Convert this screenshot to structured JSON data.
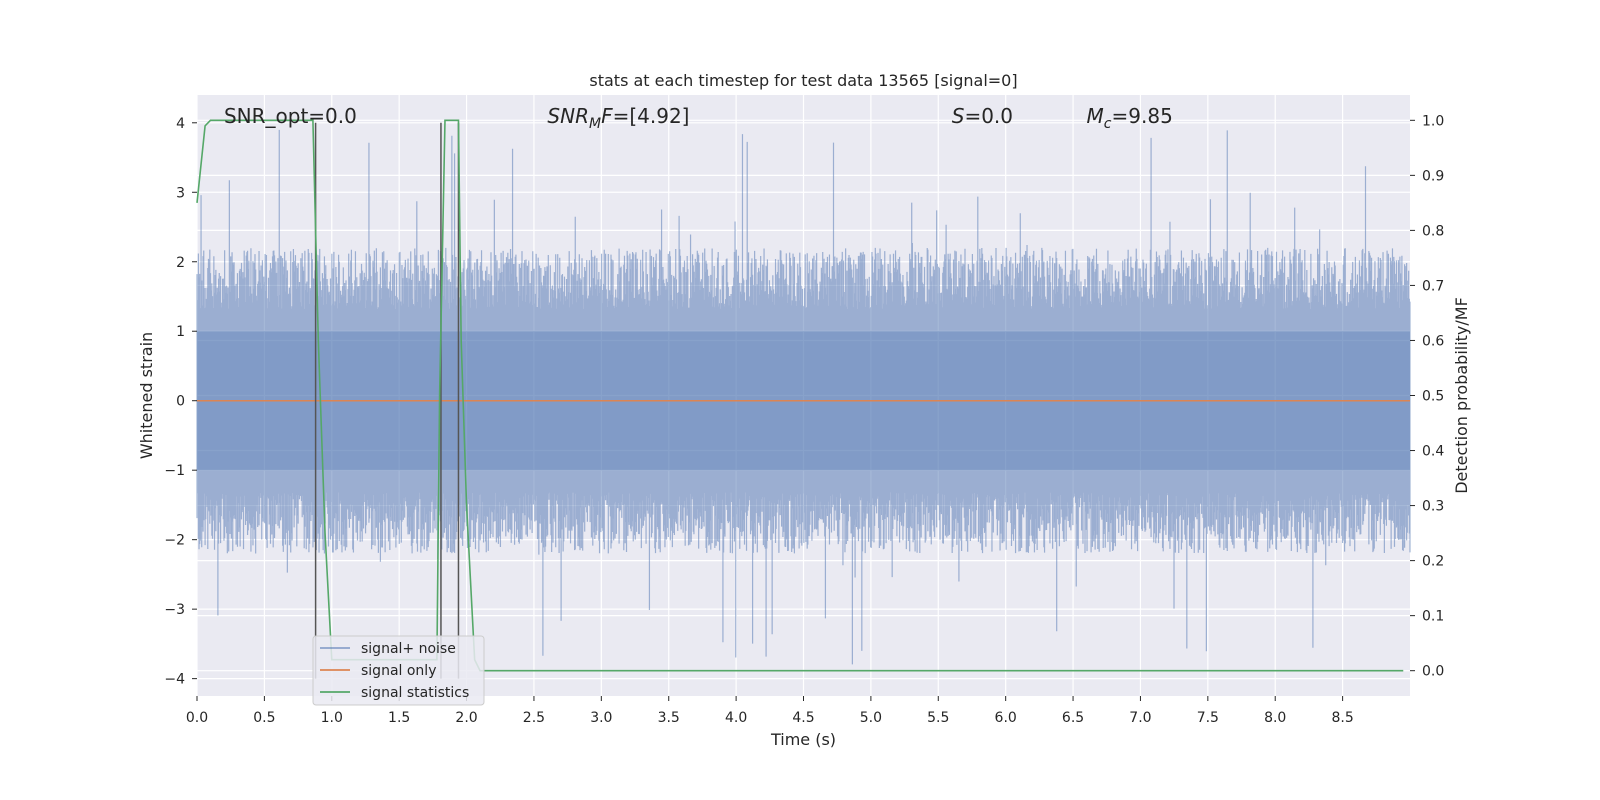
{
  "chart_data": {
    "type": "line",
    "title": "stats at each timestep for test data 13565 [signal=0]",
    "xlabel": "Time (s)",
    "ylabel": "Whitened strain",
    "y2label": "Detection probability/MF",
    "xlim": [
      0,
      9.0
    ],
    "ylim": [
      -4.25,
      4.4
    ],
    "y2lim": [
      -0.046,
      1.046
    ],
    "xticks": [
      0.0,
      0.5,
      1.0,
      1.5,
      2.0,
      2.5,
      3.0,
      3.5,
      4.0,
      4.5,
      5.0,
      5.5,
      6.0,
      6.5,
      7.0,
      7.5,
      8.0,
      8.5
    ],
    "yticks": [
      -4,
      -3,
      -2,
      -1,
      0,
      1,
      2,
      3,
      4
    ],
    "y2ticks": [
      0.0,
      0.1,
      0.2,
      0.3,
      0.4,
      0.5,
      0.6,
      0.7,
      0.8,
      0.9,
      1.0
    ],
    "grid": true,
    "legend_position": "lower-left",
    "annotations": [
      {
        "text": "SNR_opt=0.0",
        "x": 0.2,
        "y": 4.1
      },
      {
        "text": "SNR_MF=[4.92]",
        "x": 2.6,
        "y": 4.1
      },
      {
        "text": "S=0.0",
        "x": 5.6,
        "y": 4.1
      },
      {
        "text": "M_c=9.85",
        "x": 6.6,
        "y": 4.1
      }
    ],
    "vlines": [
      {
        "x": 0.88,
        "y_from": -4.0,
        "y_to": 4.0
      },
      {
        "x": 1.81,
        "y_from": -4.0,
        "y_to": 4.0
      },
      {
        "x": 1.94,
        "y_from": -4.0,
        "y_to": 4.0
      }
    ],
    "noise_envelope": {
      "x_start": 0.0,
      "x_end": 9.0,
      "samples": 1800,
      "typical_max": 2.2,
      "peak_max": 3.9,
      "typical_min": -2.2,
      "peak_min": -3.9
    },
    "series": [
      {
        "name": "signal+ noise",
        "color": "#4c72b0",
        "axis": "left",
        "style": "noise"
      },
      {
        "name": "signal only",
        "color": "#dd8452",
        "axis": "left",
        "x": [
          0.0,
          9.0
        ],
        "y": [
          0.0,
          0.0
        ]
      },
      {
        "name": "signal statistics",
        "color": "#55a868",
        "axis": "right",
        "x": [
          0.0,
          0.06,
          0.1,
          0.2,
          0.5,
          0.8,
          0.86,
          0.9,
          0.95,
          1.0,
          1.78,
          1.8,
          1.84,
          1.9,
          1.94,
          1.96,
          2.0,
          2.06,
          2.1,
          2.5,
          3.0,
          4.0,
          5.0,
          6.0,
          7.0,
          8.0,
          8.95
        ],
        "y": [
          0.85,
          0.99,
          1.0,
          1.0,
          1.0,
          1.0,
          1.0,
          0.6,
          0.25,
          0.02,
          0.02,
          0.5,
          1.0,
          1.0,
          1.0,
          0.6,
          0.3,
          0.02,
          0.0,
          0.0,
          0.0,
          0.0,
          0.0,
          0.0,
          0.0,
          0.0,
          0.0
        ]
      }
    ]
  },
  "colors": {
    "plot_bg": "#eaeaf2",
    "grid": "#ffffff",
    "noise": "#4c72b0",
    "signal": "#dd8452",
    "stats": "#55a868",
    "vline": "#555555",
    "text": "#262626"
  }
}
